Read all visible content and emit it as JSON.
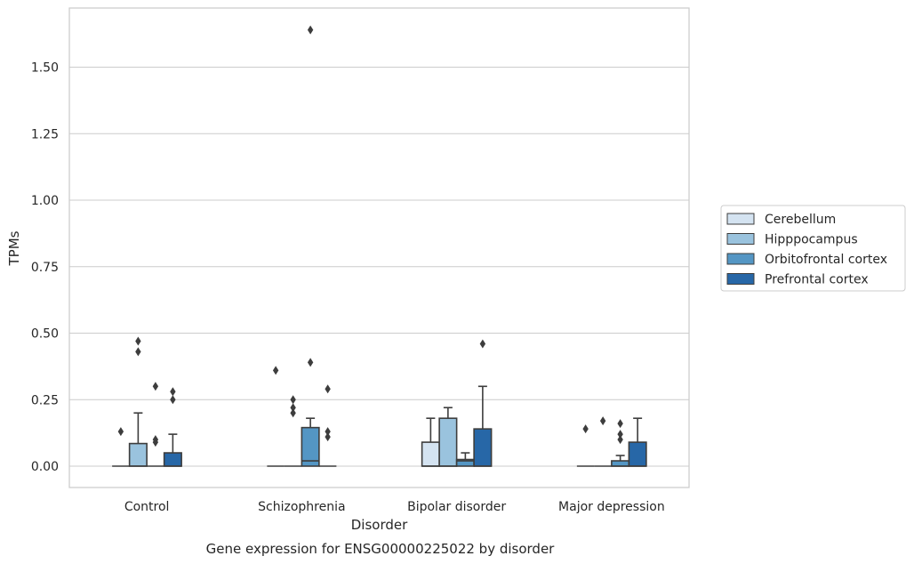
{
  "chart_data": {
    "type": "box",
    "title": "Gene expression for ENSG00000225022 by disorder",
    "xlabel": "Disorder",
    "ylabel": "TPMs",
    "ylim": [
      -0.08,
      1.76
    ],
    "yticks": [
      "0.00",
      "0.25",
      "0.50",
      "0.75",
      "1.00",
      "1.25",
      "1.50"
    ],
    "grid": "horizontal",
    "legend_position": "right",
    "categories": [
      "Control",
      "Schizophrenia",
      "Bipolar disorder",
      "Major depression"
    ],
    "series": [
      {
        "name": "Cerebellum",
        "color": "#d4e3f1",
        "boxes": [
          {
            "q1": 0,
            "median": 0,
            "q3": 0,
            "whisker_low": 0,
            "whisker_high": 0,
            "outliers": [
              0.13
            ]
          },
          {
            "q1": 0,
            "median": 0,
            "q3": 0,
            "whisker_low": 0,
            "whisker_high": 0,
            "outliers": [
              0.36
            ]
          },
          {
            "q1": 0,
            "median": 0,
            "q3": 0.09,
            "whisker_low": 0,
            "whisker_high": 0.18,
            "outliers": []
          },
          {
            "q1": 0,
            "median": 0,
            "q3": 0,
            "whisker_low": 0,
            "whisker_high": 0,
            "outliers": [
              0.14
            ]
          }
        ]
      },
      {
        "name": "Hipppocampus",
        "color": "#9ac3de",
        "boxes": [
          {
            "q1": 0,
            "median": 0,
            "q3": 0.085,
            "whisker_low": 0,
            "whisker_high": 0.2,
            "outliers": [
              0.43,
              0.47
            ]
          },
          {
            "q1": 0,
            "median": 0,
            "q3": 0,
            "whisker_low": 0,
            "whisker_high": 0,
            "outliers": [
              0.2,
              0.22,
              0.25
            ]
          },
          {
            "q1": 0,
            "median": 0,
            "q3": 0.18,
            "whisker_low": 0,
            "whisker_high": 0.22,
            "outliers": []
          },
          {
            "q1": 0,
            "median": 0,
            "q3": 0,
            "whisker_low": 0,
            "whisker_high": 0,
            "outliers": [
              0.17
            ]
          }
        ]
      },
      {
        "name": "Orbitofrontal cortex",
        "color": "#5496c4",
        "boxes": [
          {
            "q1": 0,
            "median": 0,
            "q3": 0,
            "whisker_low": 0,
            "whisker_high": 0,
            "outliers": [
              0.09,
              0.1,
              0.3
            ]
          },
          {
            "q1": 0,
            "median": 0.02,
            "q3": 0.145,
            "whisker_low": 0,
            "whisker_high": 0.18,
            "outliers": [
              0.39,
              1.64
            ]
          },
          {
            "q1": 0,
            "median": 0.02,
            "q3": 0.025,
            "whisker_low": 0,
            "whisker_high": 0.05,
            "outliers": []
          },
          {
            "q1": 0,
            "median": 0,
            "q3": 0.02,
            "whisker_low": 0,
            "whisker_high": 0.04,
            "outliers": [
              0.1,
              0.12,
              0.16
            ]
          }
        ]
      },
      {
        "name": "Prefrontal cortex",
        "color": "#2767a7",
        "boxes": [
          {
            "q1": 0,
            "median": 0,
            "q3": 0.05,
            "whisker_low": 0,
            "whisker_high": 0.12,
            "outliers": [
              0.25,
              0.28
            ]
          },
          {
            "q1": 0,
            "median": 0,
            "q3": 0,
            "whisker_low": 0,
            "whisker_high": 0,
            "outliers": [
              0.11,
              0.13,
              0.29
            ]
          },
          {
            "q1": 0,
            "median": 0,
            "q3": 0.14,
            "whisker_low": 0,
            "whisker_high": 0.3,
            "outliers": [
              0.46
            ]
          },
          {
            "q1": 0,
            "median": 0,
            "q3": 0.09,
            "whisker_low": 0,
            "whisker_high": 0.18,
            "outliers": []
          }
        ]
      }
    ]
  }
}
